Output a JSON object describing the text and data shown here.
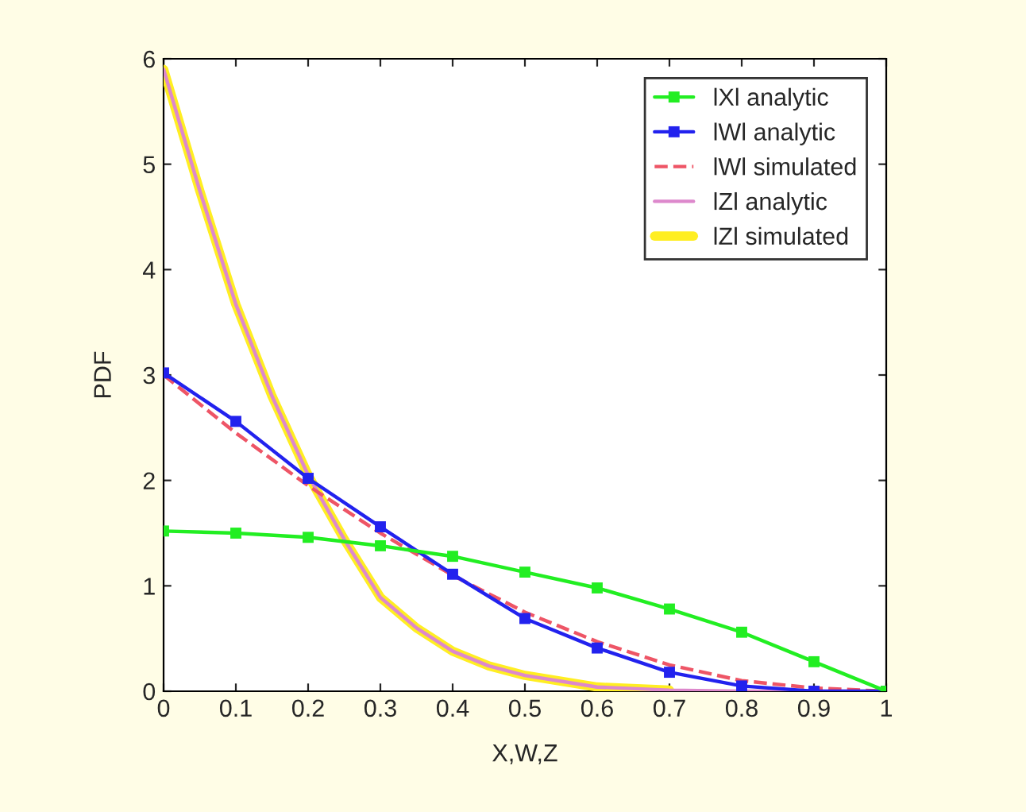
{
  "chart_data": {
    "type": "line",
    "xlabel": "X,W,Z",
    "ylabel": "PDF",
    "xlim": [
      0,
      1
    ],
    "ylim": [
      0,
      6
    ],
    "xticks": [
      0,
      0.1,
      0.2,
      0.3,
      0.4,
      0.5,
      0.6,
      0.7,
      0.8,
      0.9,
      1
    ],
    "yticks": [
      0,
      1,
      2,
      3,
      4,
      5,
      6
    ],
    "grid": false,
    "legend": "top right",
    "series": [
      {
        "name": "lXl analytic",
        "color": "#22ee22",
        "marker": "square",
        "line_style": "solid",
        "x": [
          0,
          0.1,
          0.2,
          0.3,
          0.4,
          0.5,
          0.6,
          0.7,
          0.8,
          0.9,
          1
        ],
        "values": [
          1.52,
          1.5,
          1.46,
          1.38,
          1.28,
          1.13,
          0.98,
          0.78,
          0.56,
          0.28,
          0
        ]
      },
      {
        "name": "lWl analytic",
        "color": "#2222ee",
        "marker": "square",
        "line_style": "solid",
        "x": [
          0,
          0.1,
          0.2,
          0.3,
          0.4,
          0.5,
          0.6,
          0.7,
          0.8,
          0.9,
          1
        ],
        "values": [
          3.02,
          2.56,
          2.02,
          1.56,
          1.11,
          0.69,
          0.41,
          0.18,
          0.05,
          0,
          0
        ]
      },
      {
        "name": "lWl simulated",
        "color": "#ee5566",
        "marker": "none",
        "line_style": "dashed",
        "x": [
          0,
          0.1,
          0.2,
          0.3,
          0.4,
          0.5,
          0.6,
          0.7,
          0.8,
          0.9,
          1
        ],
        "values": [
          3.0,
          2.45,
          1.95,
          1.5,
          1.1,
          0.75,
          0.47,
          0.25,
          0.1,
          0.03,
          0
        ]
      },
      {
        "name": "lZl analytic",
        "color": "#dd88cc",
        "marker": "none",
        "line_style": "solid",
        "x": [
          0,
          0.05,
          0.1,
          0.15,
          0.2,
          0.25,
          0.3,
          0.35,
          0.4,
          0.45,
          0.5,
          0.6,
          0.7,
          0.8,
          0.9,
          1
        ],
        "values": [
          5.9,
          4.75,
          3.67,
          2.8,
          2.05,
          1.44,
          0.89,
          0.6,
          0.38,
          0.24,
          0.15,
          0.04,
          0.01,
          0,
          0,
          0
        ]
      },
      {
        "name": "lZl simulated",
        "color": "#ffee22",
        "marker": "none",
        "line_style": "solid",
        "x": [
          0,
          0.05,
          0.1,
          0.15,
          0.2,
          0.25,
          0.3,
          0.35,
          0.4,
          0.45,
          0.5,
          0.6,
          0.7
        ],
        "values": [
          5.9,
          4.75,
          3.67,
          2.8,
          2.05,
          1.44,
          0.89,
          0.6,
          0.38,
          0.24,
          0.15,
          0.04,
          0.01
        ]
      }
    ]
  }
}
